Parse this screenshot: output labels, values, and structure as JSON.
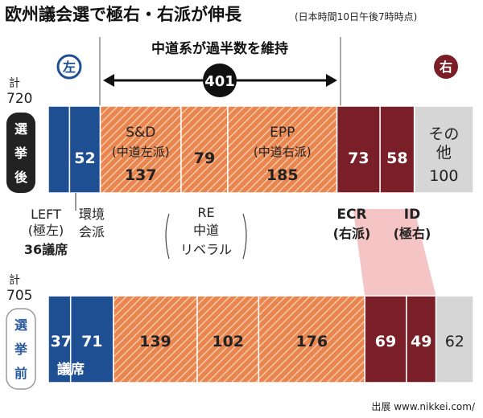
{
  "header": {
    "title": "欧州議会選で極右・右派が伸長",
    "timestamp": "(日本時間10日午後7時時点)"
  },
  "colors": {
    "left": "#1f4f93",
    "centrist": "#e9864f",
    "centrist_stripe": "#f6c8a8",
    "right": "#7a1f28",
    "other": "#d6d6d6",
    "dark": "#222222",
    "ecr_id_highlight": "#f3b6b6"
  },
  "majority": {
    "label": "中道系が過半数を維持",
    "value": "401"
  },
  "badges": {
    "left": "左",
    "right": "右"
  },
  "after": {
    "total_caption": "計",
    "total_value": "720",
    "row_label": "選挙後"
  },
  "before": {
    "total_caption": "計",
    "total_value": "705",
    "row_label": "選挙前"
  },
  "group_labels": {
    "left": {
      "line1": "LEFT",
      "line2": "(極左)",
      "line3": "36議席"
    },
    "greens": {
      "line1": "環境",
      "line2": "会派"
    },
    "re": {
      "line1": "RE",
      "line2": "中道",
      "line3": "リベラル"
    },
    "ecr": {
      "line1": "ECR",
      "line2": "(右派)"
    },
    "id": {
      "line1": "ID",
      "line2": "(極右)"
    }
  },
  "seg_text": {
    "sd_name": "S&D",
    "sd_sub": "(中道左派)",
    "epp_name": "EPP",
    "epp_sub": "(中道右派)",
    "other_name1": "その",
    "other_name2": "他",
    "seats_unit": "議席"
  },
  "chart_data": {
    "type": "bar",
    "orientation": "horizontal-stacked",
    "title": "欧州議会選で極右・右派が伸長",
    "categories": [
      "選挙後",
      "選挙前"
    ],
    "totals": [
      720,
      705
    ],
    "majority_centrist": 401,
    "series": [
      {
        "name": "LEFT(極左)",
        "group": "left",
        "values": [
          36,
          37
        ]
      },
      {
        "name": "環境会派",
        "group": "left",
        "values": [
          52,
          71
        ]
      },
      {
        "name": "S&D(中道左派)",
        "group": "centrist",
        "values": [
          137,
          139
        ]
      },
      {
        "name": "RE(中道リベラル)",
        "group": "centrist",
        "values": [
          79,
          102
        ]
      },
      {
        "name": "EPP(中道右派)",
        "group": "centrist",
        "values": [
          185,
          176
        ]
      },
      {
        "name": "ECR(右派)",
        "group": "right",
        "values": [
          73,
          69
        ]
      },
      {
        "name": "ID(極右)",
        "group": "right",
        "values": [
          58,
          49
        ]
      },
      {
        "name": "その他",
        "group": "other",
        "values": [
          100,
          62
        ]
      }
    ]
  },
  "footer": {
    "source": "出展 www.nikkei.com/"
  }
}
